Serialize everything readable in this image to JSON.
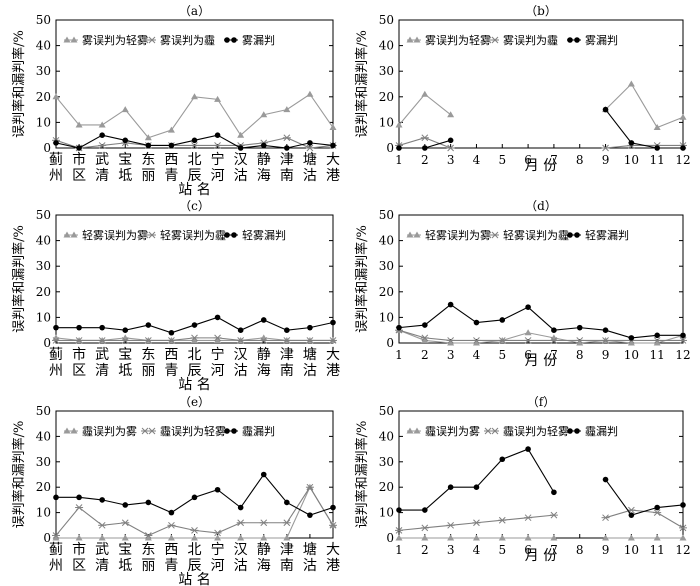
{
  "figure": {
    "ylabel": "误判率和漏判率/%",
    "station_label": "站 名",
    "month_label": "月 份",
    "stations": [
      "蓟州",
      "市区",
      "武清",
      "宝坻",
      "东丽",
      "西青",
      "北辰",
      "宁河",
      "汉沽",
      "静海",
      "津南",
      "塘沽",
      "大港"
    ],
    "months": [
      "1",
      "2",
      "3",
      "4",
      "5",
      "6",
      "7",
      "8",
      "9",
      "10",
      "11",
      "12"
    ]
  },
  "chart_data": [
    {
      "id": "a",
      "title": "（a）",
      "type": "line",
      "x_axis": "stations",
      "ylim": [
        0,
        50
      ],
      "yticks": [
        0,
        10,
        20,
        30,
        40,
        50
      ],
      "grid": false,
      "legend": "top-left",
      "series": [
        {
          "name": "雾误判为轻雾",
          "marker": "triangle",
          "color": "#9a9a9a",
          "values": [
            20,
            9,
            9,
            15,
            4,
            7,
            20,
            19,
            5,
            13,
            15,
            21,
            8
          ]
        },
        {
          "name": "雾误判为霾",
          "marker": "star",
          "color": "#808080",
          "values": [
            3,
            0,
            1,
            2,
            1,
            1,
            1,
            1,
            1,
            2,
            4,
            0,
            1
          ]
        },
        {
          "name": "雾漏判",
          "marker": "dot",
          "color": "#000000",
          "values": [
            2,
            0,
            5,
            3,
            1,
            1,
            3,
            5,
            0,
            1,
            0,
            2,
            1
          ]
        }
      ]
    },
    {
      "id": "b",
      "title": "（b）",
      "type": "line",
      "x_axis": "months",
      "ylim": [
        0,
        50
      ],
      "yticks": [
        0,
        10,
        20,
        30,
        40,
        50
      ],
      "grid": false,
      "legend": "top-left",
      "series": [
        {
          "name": "雾误判为轻雾",
          "marker": "triangle",
          "color": "#9a9a9a",
          "values": [
            9,
            21,
            13,
            null,
            null,
            null,
            null,
            null,
            15,
            25,
            8,
            12
          ]
        },
        {
          "name": "雾误判为霾",
          "marker": "star",
          "color": "#808080",
          "values": [
            1,
            4,
            0,
            null,
            null,
            null,
            null,
            null,
            0,
            1,
            1,
            1
          ]
        },
        {
          "name": "雾漏判",
          "marker": "dot",
          "color": "#000000",
          "values": [
            0,
            0,
            3,
            null,
            null,
            null,
            null,
            null,
            15,
            2,
            0,
            0
          ]
        }
      ]
    },
    {
      "id": "c",
      "title": "（c）",
      "type": "line",
      "x_axis": "stations",
      "ylim": [
        0,
        50
      ],
      "yticks": [
        0,
        10,
        20,
        30,
        40,
        50
      ],
      "grid": false,
      "legend": "top-left",
      "series": [
        {
          "name": "轻雾误判为雾",
          "marker": "triangle",
          "color": "#9a9a9a",
          "values": [
            2,
            1,
            1,
            2,
            1,
            1,
            1,
            1,
            1,
            2,
            1,
            1,
            1
          ]
        },
        {
          "name": "轻雾误判为霾",
          "marker": "star",
          "color": "#808080",
          "values": [
            1,
            1,
            1,
            1,
            1,
            1,
            2,
            2,
            1,
            1,
            1,
            1,
            1
          ]
        },
        {
          "name": "轻雾漏判",
          "marker": "dot",
          "color": "#000000",
          "values": [
            6,
            6,
            6,
            5,
            7,
            4,
            7,
            10,
            5,
            9,
            5,
            6,
            8
          ]
        }
      ]
    },
    {
      "id": "d",
      "title": "（d）",
      "type": "line",
      "x_axis": "months",
      "ylim": [
        0,
        50
      ],
      "yticks": [
        0,
        10,
        20,
        30,
        40,
        50
      ],
      "grid": false,
      "legend": "top-left",
      "series": [
        {
          "name": "轻雾误判为雾",
          "marker": "triangle",
          "color": "#9a9a9a",
          "values": [
            5,
            1,
            0,
            0,
            1,
            4,
            2,
            0,
            1,
            0,
            0,
            3
          ]
        },
        {
          "name": "轻雾误判为霾",
          "marker": "star",
          "color": "#808080",
          "values": [
            5,
            2,
            1,
            1,
            1,
            1,
            1,
            1,
            1,
            1,
            1,
            1
          ]
        },
        {
          "name": "轻雾漏判",
          "marker": "dot",
          "color": "#000000",
          "values": [
            6,
            7,
            15,
            8,
            9,
            14,
            5,
            6,
            5,
            2,
            3,
            3
          ]
        }
      ]
    },
    {
      "id": "e",
      "title": "（e）",
      "type": "line",
      "x_axis": "stations",
      "ylim": [
        0,
        50
      ],
      "yticks": [
        0,
        10,
        20,
        30,
        40,
        50
      ],
      "grid": false,
      "legend": "top-left",
      "series": [
        {
          "name": "霾误判为雾",
          "marker": "triangle",
          "color": "#9a9a9a",
          "values": [
            0,
            0,
            0,
            0,
            0,
            0,
            0,
            0,
            0,
            0,
            0,
            20,
            5
          ]
        },
        {
          "name": "霾误判为轻雾",
          "marker": "star",
          "color": "#808080",
          "values": [
            1,
            12,
            5,
            6,
            1,
            5,
            3,
            2,
            6,
            6,
            6,
            20,
            5
          ]
        },
        {
          "name": "霾漏判",
          "marker": "dot",
          "color": "#000000",
          "values": [
            16,
            16,
            15,
            13,
            14,
            10,
            16,
            19,
            12,
            25,
            14,
            9,
            12
          ]
        }
      ]
    },
    {
      "id": "f",
      "title": "（f）",
      "type": "line",
      "x_axis": "months",
      "ylim": [
        0,
        50
      ],
      "yticks": [
        0,
        10,
        20,
        30,
        40,
        50
      ],
      "grid": false,
      "legend": "top-left",
      "series": [
        {
          "name": "霾误判为雾",
          "marker": "triangle",
          "color": "#9a9a9a",
          "values": [
            0,
            0,
            0,
            0,
            0,
            0,
            0,
            null,
            0,
            0,
            0,
            0
          ]
        },
        {
          "name": "霾误判为轻雾",
          "marker": "star",
          "color": "#808080",
          "values": [
            3,
            4,
            5,
            6,
            7,
            8,
            9,
            null,
            8,
            11,
            10,
            4
          ]
        },
        {
          "name": "霾漏判",
          "marker": "dot",
          "color": "#000000",
          "values": [
            11,
            11,
            20,
            20,
            31,
            35,
            18,
            null,
            23,
            9,
            12,
            13
          ]
        }
      ]
    }
  ]
}
